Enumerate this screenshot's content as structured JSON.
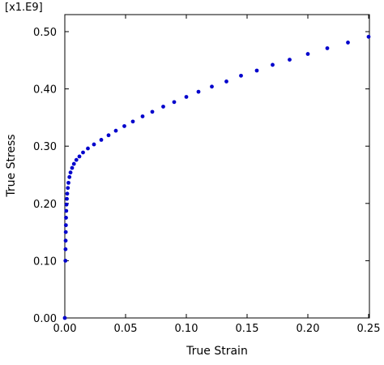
{
  "chart_data": {
    "type": "scatter",
    "title": "",
    "xlabel": "True Strain",
    "ylabel": "True Stress",
    "y_scale_label": "[x1.E9]",
    "xlim": [
      0,
      0.25
    ],
    "ylim": [
      0,
      0.53
    ],
    "xticks": [
      0.0,
      0.05,
      0.1,
      0.15,
      0.2,
      0.25
    ],
    "xtick_labels": [
      "0.00",
      "0.05",
      "0.10",
      "0.15",
      "0.20",
      "0.25"
    ],
    "yticks": [
      0.0,
      0.1,
      0.2,
      0.3,
      0.4,
      0.5
    ],
    "ytick_labels": [
      "0.00",
      "0.10",
      "0.20",
      "0.30",
      "0.40",
      "0.50"
    ],
    "grid": false,
    "marker_color": "#0000cc",
    "series": [
      {
        "x": [
          0.0,
          0.0005,
          0.0006,
          0.0007,
          0.0008,
          0.0009,
          0.001,
          0.0012,
          0.0014,
          0.0017,
          0.002,
          0.0025,
          0.003,
          0.0038,
          0.0047,
          0.006,
          0.0075,
          0.0095,
          0.012,
          0.015,
          0.019,
          0.024,
          0.03,
          0.036,
          0.042,
          0.049,
          0.056,
          0.064,
          0.072,
          0.081,
          0.09,
          0.1,
          0.11,
          0.121,
          0.133,
          0.145,
          0.158,
          0.171,
          0.185,
          0.2,
          0.216,
          0.233,
          0.25
        ],
        "y": [
          0.0,
          0.1,
          0.12,
          0.135,
          0.15,
          0.162,
          0.175,
          0.187,
          0.198,
          0.208,
          0.217,
          0.227,
          0.236,
          0.246,
          0.254,
          0.262,
          0.269,
          0.276,
          0.282,
          0.289,
          0.296,
          0.303,
          0.311,
          0.319,
          0.327,
          0.335,
          0.343,
          0.352,
          0.36,
          0.369,
          0.377,
          0.386,
          0.395,
          0.404,
          0.413,
          0.423,
          0.432,
          0.442,
          0.451,
          0.461,
          0.471,
          0.481,
          0.491
        ]
      }
    ]
  }
}
